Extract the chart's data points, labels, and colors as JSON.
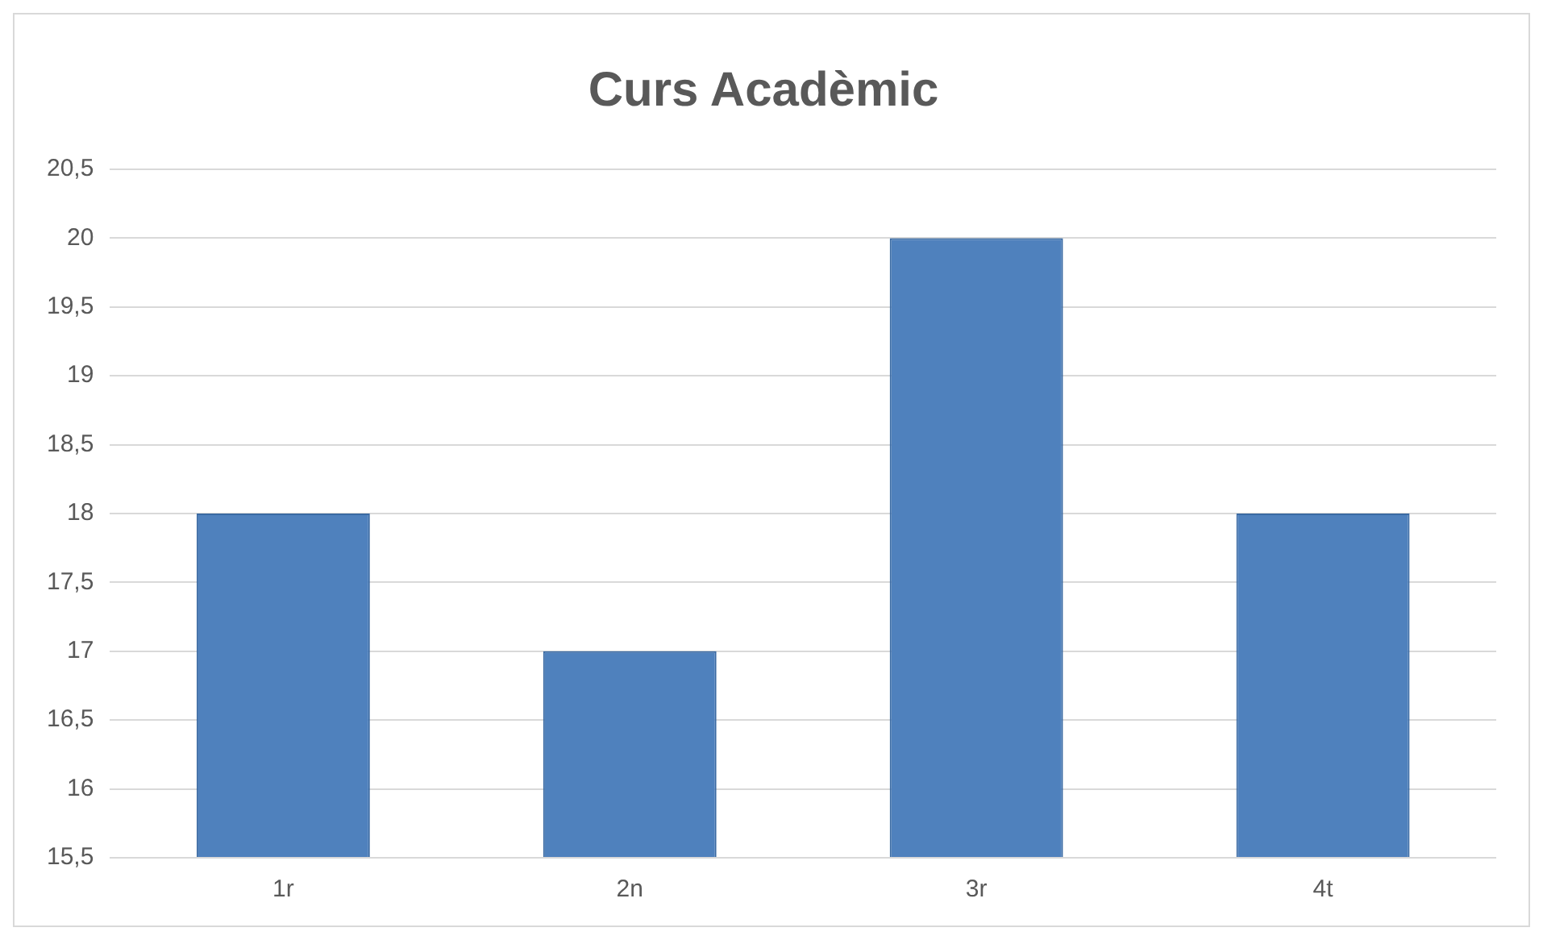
{
  "chart_data": {
    "type": "bar",
    "title": "Curs Acadèmic",
    "categories": [
      "1r",
      "2n",
      "3r",
      "4t"
    ],
    "values": [
      18,
      17,
      20,
      18
    ],
    "color": "#4f81bd",
    "ylim": [
      15.5,
      20.5
    ],
    "yticks": [
      {
        "value": 15.5,
        "label": "15,5"
      },
      {
        "value": 16,
        "label": "16"
      },
      {
        "value": 16.5,
        "label": "16,5"
      },
      {
        "value": 17,
        "label": "17"
      },
      {
        "value": 17.5,
        "label": "17,5"
      },
      {
        "value": 18,
        "label": "18"
      },
      {
        "value": 18.5,
        "label": "18,5"
      },
      {
        "value": 19,
        "label": "19"
      },
      {
        "value": 19.5,
        "label": "19,5"
      },
      {
        "value": 20,
        "label": "20"
      },
      {
        "value": 20.5,
        "label": "20,5"
      }
    ],
    "grid": "y"
  }
}
